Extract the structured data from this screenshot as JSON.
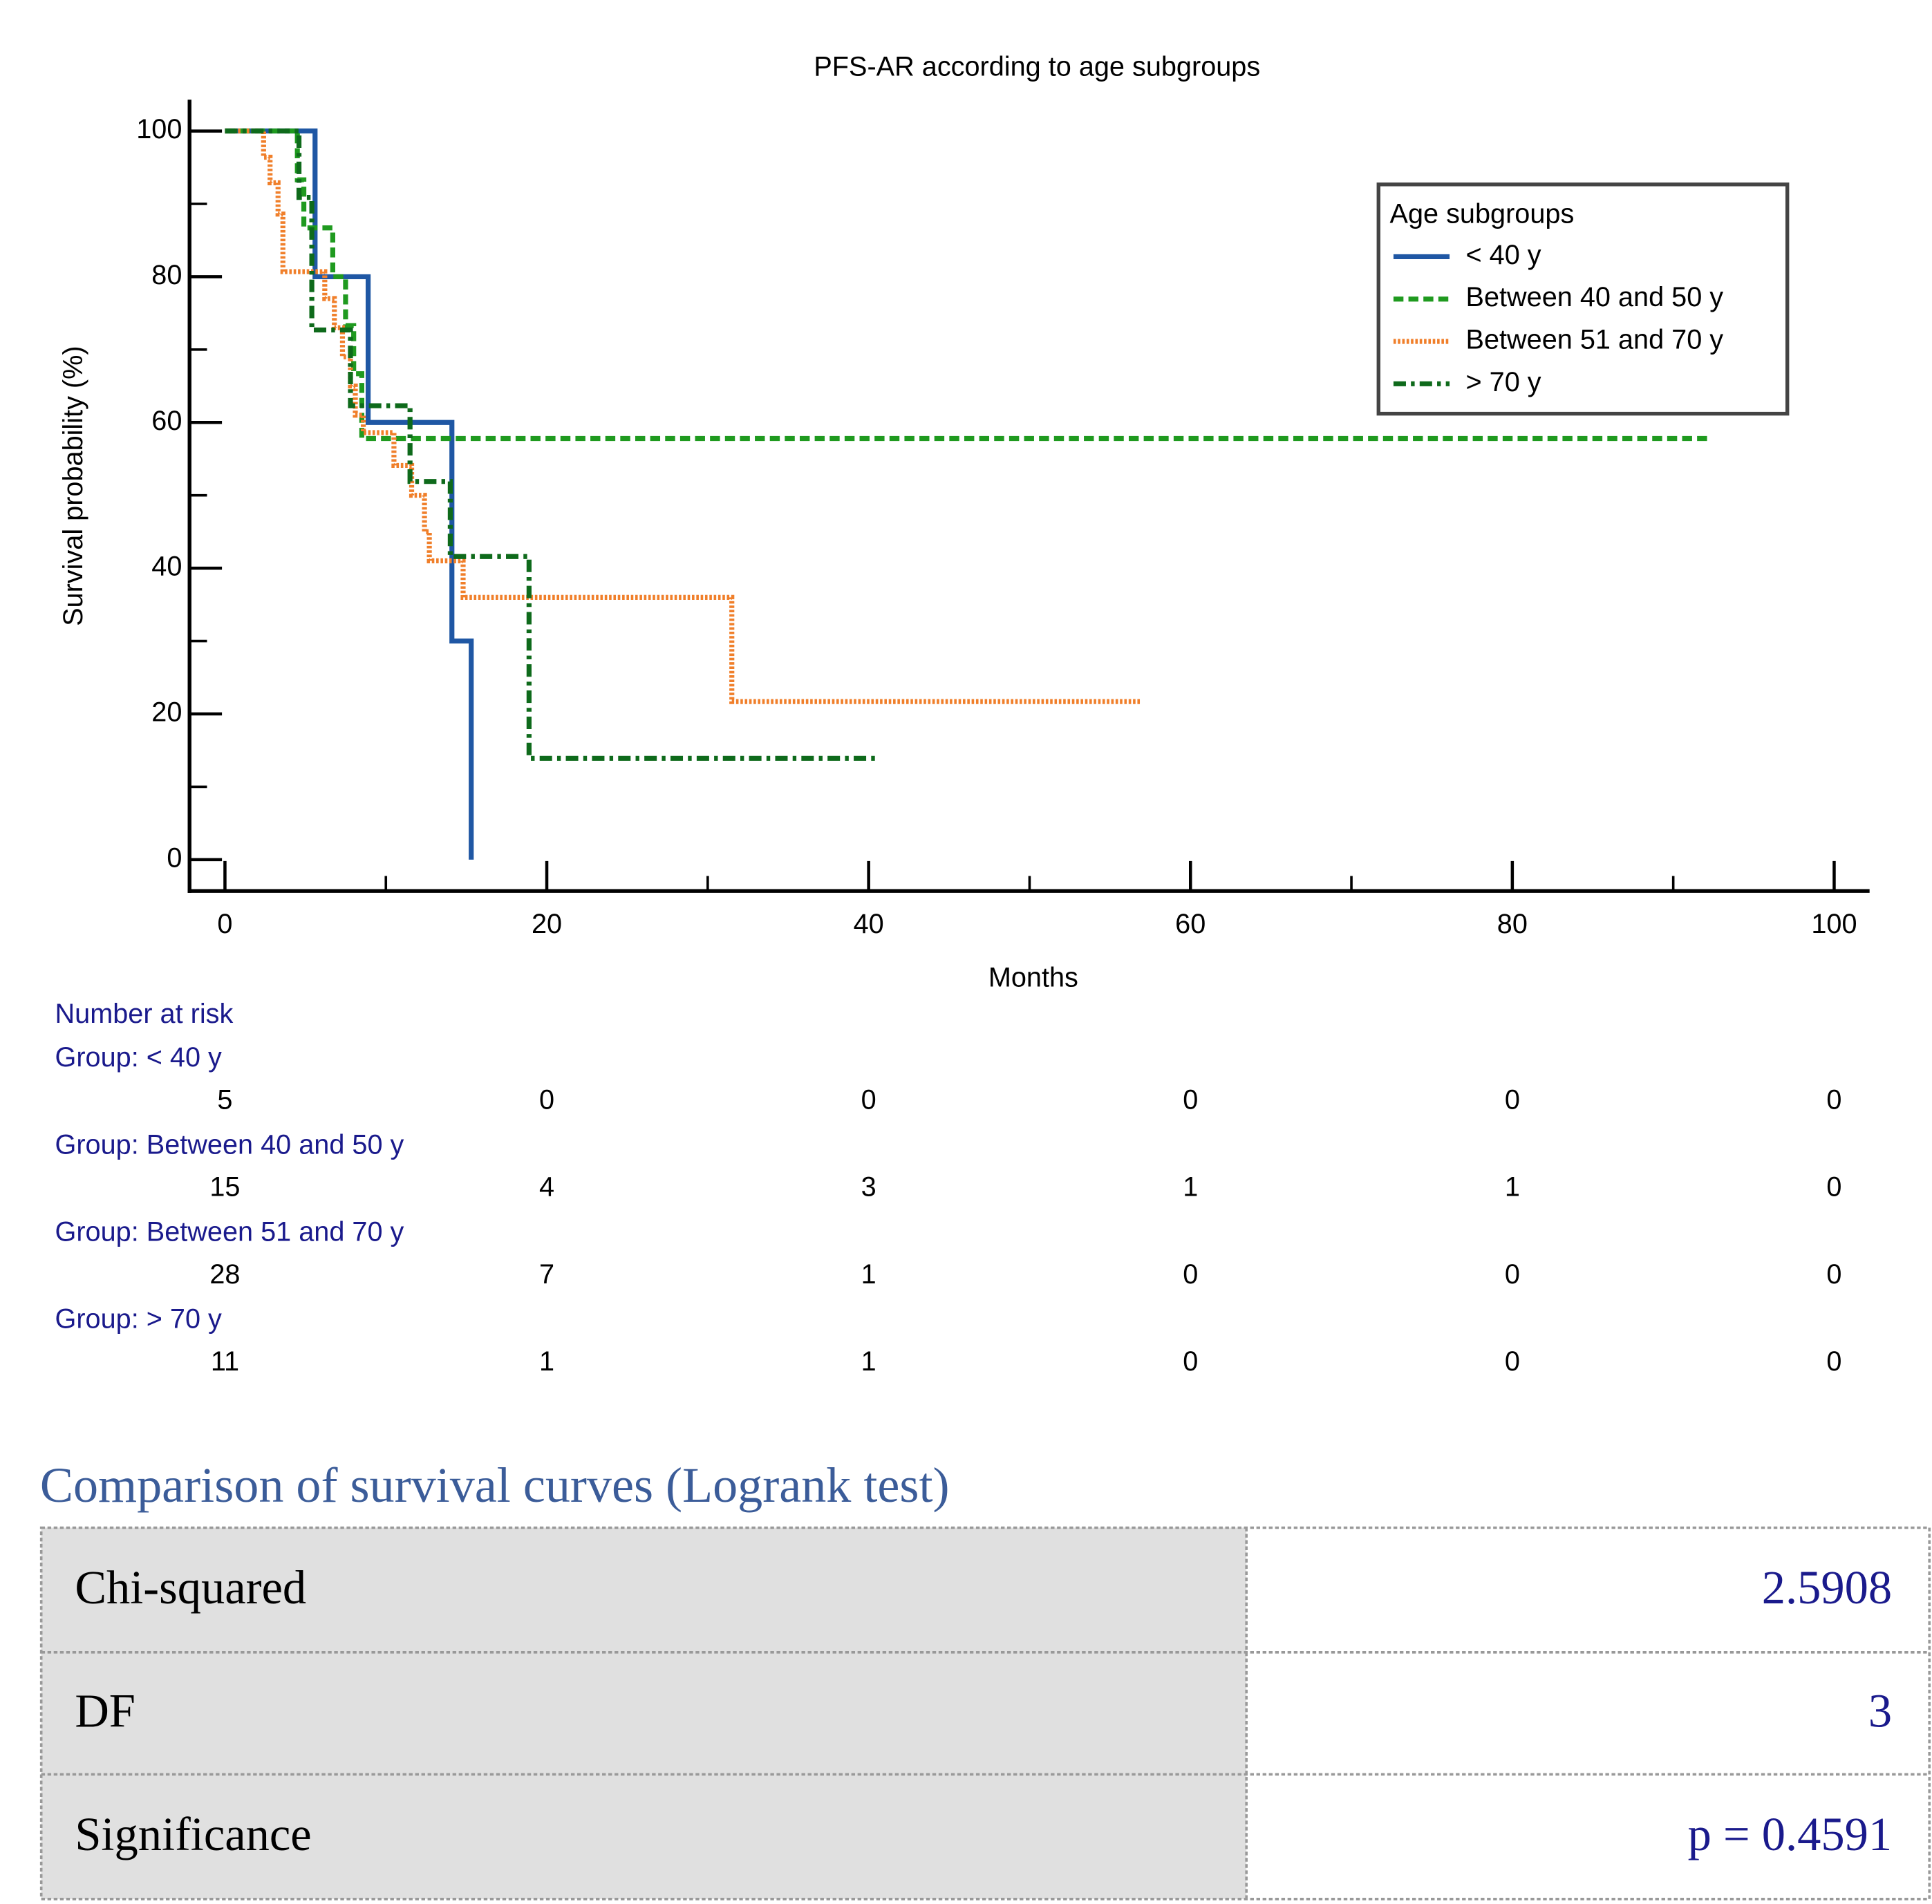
{
  "chart_data": {
    "type": "line",
    "title": "PFS-AR according to age subgroups",
    "xlabel": "Months",
    "ylabel": "Survival probability (%)",
    "xlim": [
      -2.2,
      102.2
    ],
    "ylim": [
      -4.3,
      104.3
    ],
    "xticks": [
      0,
      20,
      40,
      60,
      80,
      100
    ],
    "xminorticks": [
      10,
      30,
      50,
      70,
      90
    ],
    "yticks": [
      0,
      20,
      40,
      60,
      80,
      100
    ],
    "yminorticks": [
      10,
      30,
      50,
      70,
      90
    ],
    "legend_title": "Age subgroups",
    "legend": "upper right",
    "series": [
      {
        "name": "< 40 y",
        "color": "#1f57a4",
        "dash": "none",
        "x": [
          0,
          5.6,
          5.6,
          8.9,
          8.9,
          14.1,
          14.1,
          15.3,
          15.3
        ],
        "values": [
          100,
          100,
          80,
          80,
          60,
          60,
          30,
          30,
          0
        ]
      },
      {
        "name": "Between 40 and 50 y",
        "color": "#1f9a1f",
        "dash": "8,4",
        "x": [
          0,
          4.5,
          4.5,
          4.9,
          4.9,
          6.7,
          6.7,
          7.5,
          7.5,
          8.0,
          8.0,
          8.5,
          8.5,
          92.3
        ],
        "values": [
          100,
          100,
          93.3,
          93.3,
          86.7,
          86.7,
          80,
          80,
          73.3,
          73.3,
          66.7,
          66.7,
          57.8,
          57.8
        ]
      },
      {
        "name": "Between 51 and 70 y",
        "color": "#f07f2a",
        "dash": "2,1.5",
        "x": [
          0,
          2.4,
          2.4,
          2.8,
          2.8,
          3.3,
          3.3,
          3.6,
          3.6,
          6.2,
          6.2,
          6.8,
          6.8,
          7.3,
          7.3,
          7.8,
          7.8,
          8.1,
          8.1,
          8.6,
          8.6,
          10.5,
          10.5,
          11.6,
          11.6,
          12.4,
          12.4,
          12.7,
          12.7,
          14.6,
          14.6,
          14.8,
          14.8,
          31.5,
          31.5,
          56.9
        ],
        "values": [
          100,
          100,
          96.4,
          96.4,
          92.9,
          92.9,
          88.6,
          88.6,
          80.7,
          80.7,
          77,
          77,
          73,
          73,
          69,
          69,
          65,
          65,
          61,
          61,
          58.6,
          58.6,
          54.1,
          54.1,
          50,
          50,
          45,
          45,
          41,
          41,
          41,
          41,
          36,
          36,
          21.7,
          21.7
        ]
      },
      {
        "name": "> 70 y",
        "color": "#0e6a1b",
        "dash": "10,4,3,4",
        "x": [
          0,
          4.6,
          4.6,
          5.4,
          5.4,
          7.8,
          7.8,
          11.5,
          11.5,
          14.0,
          14.0,
          18.9,
          18.9,
          40.6
        ],
        "values": [
          100,
          100,
          90.9,
          90.9,
          72.7,
          72.7,
          62.3,
          62.3,
          51.9,
          51.9,
          41.6,
          41.6,
          13.9,
          13.9
        ]
      }
    ]
  },
  "risk_table": {
    "title": "Number at risk",
    "groups": [
      {
        "label": "Group: < 40 y",
        "values": [
          5,
          0,
          0,
          0,
          0,
          0
        ]
      },
      {
        "label": "Group: Between 40 and 50 y",
        "values": [
          15,
          4,
          3,
          1,
          1,
          0
        ]
      },
      {
        "label": "Group: Between 51 and 70 y",
        "values": [
          28,
          7,
          1,
          0,
          0,
          0
        ]
      },
      {
        "label": "Group: > 70 y",
        "values": [
          11,
          1,
          1,
          0,
          0,
          0
        ]
      }
    ]
  },
  "logrank": {
    "title": "Comparison of survival curves (Logrank test)",
    "rows": [
      [
        "Chi-squared",
        "2.5908"
      ],
      [
        "DF",
        "3"
      ],
      [
        "Significance",
        "p = 0.4591"
      ]
    ]
  }
}
